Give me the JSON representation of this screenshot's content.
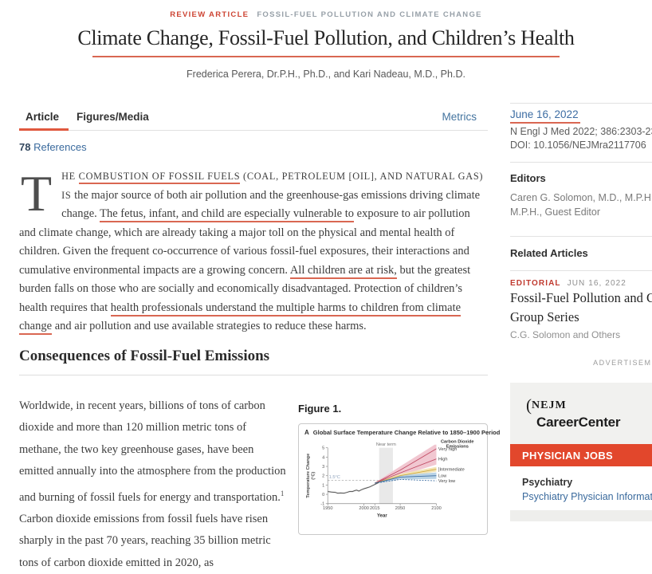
{
  "header": {
    "eyebrow_primary": "REVIEW ARTICLE",
    "eyebrow_secondary": "FOSSIL-FUEL POLLUTION AND CLIMATE CHANGE",
    "title": "Climate Change, Fossil-Fuel Pollution, and Children’s Health",
    "authors": "Frederica Perera, Dr.P.H., Ph.D., and Kari Nadeau, M.D., Ph.D."
  },
  "tabs": {
    "article": "Article",
    "figures_media": "Figures/Media",
    "metrics": "Metrics"
  },
  "references": {
    "count": "78",
    "label": "References"
  },
  "intro_paragraph": {
    "dropcap": "T",
    "segments": [
      {
        "t": "HE ",
        "cls": "sc"
      },
      {
        "t": "COMBUSTION OF FOSSIL FUELS",
        "cls": "sc ul"
      },
      {
        "t": " (COAL, PETROLEUM [OIL], AND NATURAL GAS) IS",
        "cls": "sc"
      },
      {
        "t": " the major source of both air pollution and the greenhouse-gas emissions driving climate change. "
      },
      {
        "t": "The fetus, infant, and child are especially vulnerable to",
        "cls": "ul"
      },
      {
        "t": " exposure to air pollution and climate change, which are already taking a major toll on the physical and mental health of children. Given the frequent co-occurrence of various fossil-fuel exposures, their interactions and cumulative environmental impacts are a growing concern. "
      },
      {
        "t": "All children are at risk,",
        "cls": "ul"
      },
      {
        "t": " but the greatest burden falls on those who are socially and economically disadvantaged. Protection of children’s health requires that "
      },
      {
        "t": "health professionals understand the multiple harms to children from climate change",
        "cls": "ul"
      },
      {
        "t": " and air pollution and use available strategies to reduce these harms."
      }
    ]
  },
  "section": {
    "heading": "Consequences of Fossil-Fuel Emissions"
  },
  "body_column": {
    "segments": [
      {
        "t": "Worldwide, in recent years, billions of tons of carbon dioxide and more than 120 million metric tons of methane, the two key greenhouse gases, have been emitted annually into the atmosphere from the production and burning of fossil fuels for energy and transportation."
      },
      {
        "t": "1",
        "cls": "sup"
      },
      {
        "t": " Carbon dioxide emissions from fossil fuels have risen sharply in the past 70 years, reaching 35 billion metric tons of carbon dioxide emitted in 2020, as"
      }
    ]
  },
  "figure": {
    "label": "Figure 1."
  },
  "chart_data": {
    "type": "line",
    "panel_label": "A",
    "title": "Global Surface Temperature Change Relative to 1850–1900 Period",
    "xlabel": "Year",
    "ylabel_lines": [
      "Temperature Change",
      "(°C)"
    ],
    "xlim": [
      1950,
      2100
    ],
    "ylim": [
      -1,
      5
    ],
    "xticks": [
      1950,
      2000,
      2015,
      2050,
      2100
    ],
    "yticks": [
      -1,
      0,
      1,
      2,
      3,
      4,
      5
    ],
    "grid": false,
    "legend_position": "right",
    "legend_title_lines": [
      "Carbon Dioxide",
      "Emissions"
    ],
    "near_term": {
      "label": "Near term",
      "x0": 2021,
      "x1": 2040
    },
    "threshold": {
      "label": "1.5°C",
      "y": 1.5,
      "x_end": 2045
    },
    "historical": {
      "name": "Observed",
      "color": "#4d4d4d",
      "band_color": "#dedede",
      "band_half_width": 0.09,
      "x": [
        1950,
        1955,
        1960,
        1964,
        1968,
        1972,
        1976,
        1980,
        1984,
        1988,
        1990,
        1993,
        1996,
        2000,
        2004,
        2008,
        2012,
        2016,
        2020
      ],
      "y": [
        0.3,
        0.25,
        0.22,
        0.12,
        0.15,
        0.12,
        0.2,
        0.3,
        0.3,
        0.42,
        0.45,
        0.35,
        0.48,
        0.6,
        0.7,
        0.8,
        0.95,
        1.1,
        1.25
      ]
    },
    "scenarios": [
      {
        "name": "Very high",
        "line_color": "#c04a63",
        "band_color": "#f1c7d1",
        "x": [
          2015,
          2050,
          2100
        ],
        "y": [
          1.2,
          2.6,
          4.9
        ],
        "band_low": [
          1.15,
          2.25,
          3.95
        ],
        "band_high": [
          1.25,
          3.0,
          5.45
        ]
      },
      {
        "name": "High",
        "line_color": "#c04a63",
        "band_color": "#f1c7d1",
        "x": [
          2015,
          2050,
          2100
        ],
        "y": [
          1.2,
          2.3,
          3.8
        ],
        "band_low": [
          1.15,
          2.0,
          3.2
        ],
        "band_high": [
          1.25,
          2.6,
          4.4
        ]
      },
      {
        "name": "Intermediate",
        "bracket": true,
        "line_color": "#cfa83a",
        "band_color": "#f3e4b5",
        "x": [
          2015,
          2050,
          2100
        ],
        "y": [
          1.2,
          2.0,
          2.7
        ],
        "band_low": [
          1.15,
          1.8,
          2.45
        ],
        "band_high": [
          1.25,
          2.2,
          2.95
        ]
      },
      {
        "name": "Low",
        "line_color": "#3f6fa3",
        "band_color": "#b9d3e6",
        "x": [
          2015,
          2050,
          2100
        ],
        "y": [
          1.2,
          1.85,
          2.0
        ],
        "band_low": [
          1.15,
          1.6,
          1.65
        ],
        "band_high": [
          1.25,
          2.05,
          2.35
        ]
      },
      {
        "name": "Very low",
        "line_color": "#3f6fa3",
        "dashed": true,
        "x": [
          2015,
          2050,
          2100
        ],
        "y": [
          1.2,
          1.6,
          1.45
        ]
      }
    ]
  },
  "sidebar": {
    "date": "June 16, 2022",
    "citation": "N Engl J Med 2022; 386:2303-2314",
    "doi": "DOI: 10.1056/NEJMra2117706",
    "editors_heading": "Editors",
    "editors_lines": [
      "Caren G. Solomon, M.D., M.P.H., Ed",
      "M.P.H., Guest Editor"
    ],
    "related_heading": "Related Articles",
    "related": {
      "kicker": "EDITORIAL",
      "kicker_date": "JUN 16, 2022",
      "title_lines": [
        "Fossil-Fuel Pollution and Climate",
        "Group Series"
      ],
      "authors": "C.G. Solomon and Others"
    },
    "advertisement_label": "ADVERTISEMENT",
    "ad": {
      "logo_prefix": "(",
      "logo_name": "NEJM",
      "logo_product": "CareerCenter",
      "banner": "PHYSICIAN JOBS",
      "job_category": "Psychiatry",
      "job_title": "Psychiatry Physician Informaticist"
    }
  },
  "colors": {
    "brand_red": "#cd4433",
    "annotation_red": "#d96752",
    "tab_active_red": "#e0583e",
    "banner_red": "#e2472c",
    "link_blue": "#3a6a9d"
  }
}
